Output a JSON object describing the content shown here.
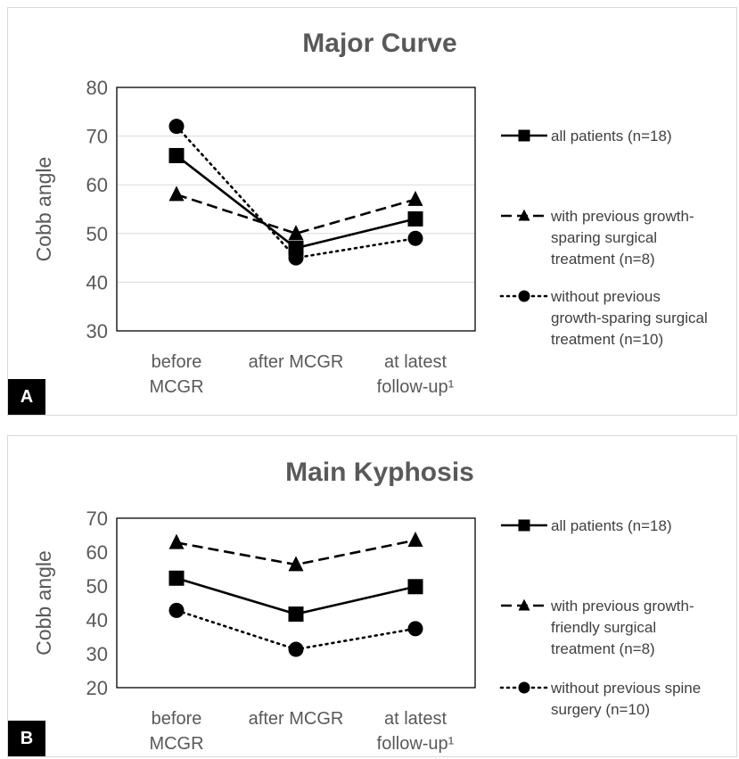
{
  "chart_data": [
    {
      "type": "line",
      "panel_label": "A",
      "title": "Major Curve",
      "ylabel": "Cobb angle",
      "ylim": [
        30,
        80
      ],
      "yticks": [
        30,
        40,
        50,
        60,
        70,
        80
      ],
      "grid": true,
      "legend_placement": "right",
      "categories": [
        [
          "before",
          "MCGR"
        ],
        [
          "after MCGR"
        ],
        [
          "at latest",
          "follow-up¹"
        ]
      ],
      "series": [
        {
          "name": [
            "all patients (n=18)"
          ],
          "values": [
            66,
            47,
            53
          ],
          "marker": "square",
          "dash": "solid"
        },
        {
          "name": [
            "with previous growth-",
            "sparing surgical",
            "treatment (n=8)"
          ],
          "values": [
            58,
            50,
            57
          ],
          "marker": "triangle",
          "dash": "dashed"
        },
        {
          "name": [
            "without previous",
            "growth-sparing surgical",
            "treatment (n=10)"
          ],
          "values": [
            72,
            45,
            49
          ],
          "marker": "circle",
          "dash": "dotted"
        }
      ]
    },
    {
      "type": "line",
      "panel_label": "B",
      "title": "Main Kyphosis",
      "ylabel": "Cobb angle",
      "ylim": [
        20,
        70
      ],
      "yticks": [
        20,
        30,
        40,
        50,
        60,
        70
      ],
      "grid": false,
      "legend_placement": "right",
      "categories": [
        [
          "before",
          "MCGR"
        ],
        [
          "after MCGR"
        ],
        [
          "at latest",
          "follow-up¹"
        ]
      ],
      "series": [
        {
          "name": [
            "all patients (n=18)"
          ],
          "values": [
            52.3,
            41.7,
            49.8
          ],
          "marker": "square",
          "dash": "solid"
        },
        {
          "name": [
            "with previous growth-",
            "friendly surgical",
            "treatment (n=8)"
          ],
          "values": [
            62.8,
            56.3,
            63.5
          ],
          "marker": "triangle",
          "dash": "dashed"
        },
        {
          "name": [
            "without previous spine",
            "surgery (n=10)"
          ],
          "values": [
            42.8,
            31.3,
            37.4
          ],
          "marker": "circle",
          "dash": "dotted"
        }
      ]
    }
  ]
}
